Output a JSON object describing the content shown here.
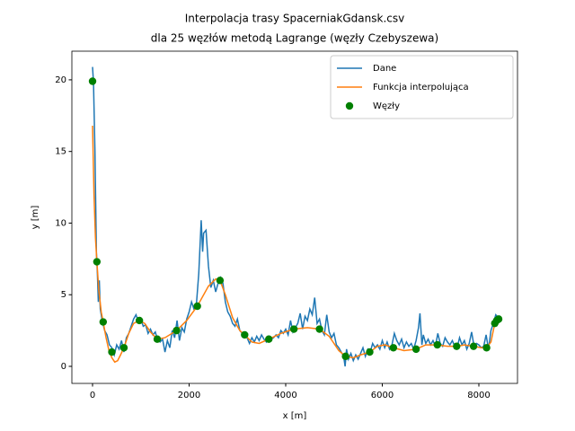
{
  "chart_data": {
    "type": "line",
    "title": [
      "Interpolacja trasy SpacerniakGdansk.csv",
      "dla 25 węzłów metodą  Lagrange (węzły Czebyszewa)"
    ],
    "xlabel": "x [m]",
    "ylabel": "y [m]",
    "xlim": [
      -428,
      8800
    ],
    "ylim": [
      -1.19,
      22.0
    ],
    "xticks": [
      0,
      2000,
      4000,
      6000,
      8000
    ],
    "yticks": [
      0,
      5,
      10,
      15,
      20
    ],
    "grid": false,
    "legend": "upper right",
    "series": [
      {
        "name": "Dane",
        "color": "#1f77b4",
        "kind": "line",
        "x": [
          0,
          20,
          50,
          80,
          100,
          120,
          140,
          160,
          200,
          250,
          300,
          350,
          400,
          450,
          500,
          550,
          600,
          650,
          700,
          750,
          800,
          850,
          900,
          950,
          1000,
          1050,
          1100,
          1150,
          1200,
          1250,
          1300,
          1350,
          1400,
          1450,
          1500,
          1550,
          1600,
          1650,
          1700,
          1750,
          1800,
          1850,
          1900,
          1950,
          2000,
          2050,
          2100,
          2150,
          2200,
          2250,
          2280,
          2300,
          2350,
          2400,
          2450,
          2500,
          2550,
          2600,
          2650,
          2700,
          2750,
          2800,
          2850,
          2900,
          2950,
          3000,
          3050,
          3100,
          3150,
          3200,
          3250,
          3300,
          3350,
          3400,
          3450,
          3500,
          3550,
          3600,
          3650,
          3700,
          3750,
          3800,
          3850,
          3900,
          3950,
          4000,
          4050,
          4100,
          4150,
          4200,
          4250,
          4300,
          4350,
          4400,
          4450,
          4500,
          4550,
          4600,
          4650,
          4700,
          4750,
          4800,
          4850,
          4900,
          4950,
          5000,
          5050,
          5100,
          5150,
          5200,
          5230,
          5260,
          5300,
          5350,
          5400,
          5450,
          5500,
          5550,
          5600,
          5650,
          5700,
          5750,
          5800,
          5850,
          5900,
          5950,
          6000,
          6050,
          6100,
          6150,
          6200,
          6250,
          6300,
          6350,
          6400,
          6450,
          6500,
          6550,
          6600,
          6650,
          6700,
          6750,
          6780,
          6820,
          6850,
          6900,
          6950,
          7000,
          7050,
          7100,
          7150,
          7200,
          7250,
          7300,
          7350,
          7400,
          7450,
          7500,
          7550,
          7600,
          7650,
          7700,
          7750,
          7800,
          7850,
          7900,
          7950,
          8000,
          8050,
          8100,
          8150,
          8200,
          8250,
          8300,
          8350,
          8400,
          8430
        ],
        "values": [
          20.9,
          19.8,
          15,
          8,
          6.5,
          4.5,
          6,
          4,
          3.2,
          2.5,
          2.2,
          1.5,
          1.3,
          0.8,
          1.5,
          1.2,
          1.8,
          1.0,
          2.0,
          2.3,
          2.8,
          3.3,
          3.6,
          3.1,
          3.3,
          2.8,
          2.9,
          2.3,
          2.6,
          2.2,
          2.4,
          1.8,
          1.7,
          1.9,
          1.0,
          1.8,
          1.3,
          2.5,
          2.0,
          3.2,
          1.8,
          2.7,
          2.4,
          3.3,
          3.8,
          4.5,
          4.0,
          4.3,
          6.5,
          10.2,
          8.0,
          9.3,
          9.5,
          7.0,
          5.5,
          6.0,
          5.2,
          5.8,
          6.2,
          5.8,
          4.5,
          3.8,
          3.5,
          3.0,
          2.8,
          3.3,
          2.5,
          2.3,
          2.1,
          2.0,
          1.6,
          2.0,
          1.7,
          2.1,
          1.8,
          2.2,
          1.9,
          1.7,
          2.1,
          1.9,
          2.0,
          2.2,
          2.0,
          2.5,
          2.3,
          2.6,
          2.2,
          3.2,
          2.4,
          2.7,
          3.0,
          3.7,
          2.6,
          3.5,
          3.2,
          4.0,
          3.6,
          4.8,
          3.0,
          3.3,
          2.5,
          2.2,
          3.6,
          2.4,
          2.0,
          2.3,
          1.5,
          1.3,
          1.0,
          0.7,
          0.0,
          1.2,
          0.5,
          0.9,
          0.4,
          0.8,
          0.5,
          0.9,
          1.3,
          0.7,
          1.2,
          1.0,
          1.6,
          1.3,
          1.5,
          1.2,
          1.8,
          1.3,
          1.7,
          1.2,
          1.5,
          2.3,
          1.8,
          1.5,
          1.9,
          1.3,
          1.7,
          1.4,
          1.6,
          1.2,
          1.8,
          2.7,
          3.7,
          1.5,
          2.2,
          1.6,
          1.9,
          1.5,
          1.8,
          1.4,
          2.3,
          1.6,
          1.4,
          2.0,
          1.7,
          1.5,
          1.8,
          1.4,
          1.3,
          2.0,
          1.5,
          1.8,
          1.2,
          1.6,
          2.4,
          1.4,
          1.6,
          1.5,
          1.3,
          1.4,
          2.2,
          1.2,
          2.5,
          3.0,
          3.6,
          3.4,
          3.2
        ]
      },
      {
        "name": "Funkcja interpolująca",
        "color": "#ff7f0e",
        "kind": "line",
        "x": [
          0,
          30,
          60,
          90,
          130,
          180,
          220,
          280,
          340,
          400,
          460,
          520,
          580,
          650,
          750,
          850,
          970,
          1080,
          1200,
          1340,
          1500,
          1740,
          1950,
          2170,
          2400,
          2550,
          2640,
          2750,
          2900,
          3050,
          3150,
          3300,
          3450,
          3650,
          3900,
          4170,
          4450,
          4700,
          4900,
          5100,
          5240,
          5400,
          5550,
          5740,
          5900,
          6050,
          6230,
          6450,
          6700,
          6900,
          7140,
          7350,
          7540,
          7700,
          7890,
          8050,
          8160,
          8250,
          8330,
          8410
        ],
        "values": [
          16.8,
          12,
          9,
          7.3,
          5.3,
          3.8,
          3.1,
          2.0,
          1.1,
          0.6,
          0.3,
          0.4,
          0.8,
          1.3,
          2.3,
          3.0,
          3.2,
          3.0,
          2.4,
          1.9,
          2.0,
          2.5,
          3.2,
          4.2,
          5.6,
          6.1,
          6.0,
          5.0,
          3.4,
          2.5,
          2.2,
          1.7,
          1.6,
          1.9,
          2.3,
          2.6,
          2.7,
          2.6,
          2.1,
          1.1,
          0.7,
          0.6,
          0.8,
          1.0,
          1.4,
          1.5,
          1.3,
          1.1,
          1.2,
          1.5,
          1.5,
          1.4,
          1.4,
          1.5,
          1.4,
          1.3,
          1.3,
          1.7,
          3.0,
          3.3
        ]
      },
      {
        "name": "Węzły",
        "color": "#008000",
        "kind": "scatter",
        "x": [
          0,
          90,
          220,
          400,
          650,
          970,
          1340,
          1740,
          2170,
          2640,
          3150,
          3650,
          4170,
          4700,
          5240,
          5740,
          6230,
          6700,
          7140,
          7540,
          7890,
          8160,
          8330,
          8370,
          8410
        ],
        "values": [
          19.9,
          7.3,
          3.1,
          1.0,
          1.3,
          3.2,
          1.9,
          2.5,
          4.2,
          6.0,
          2.2,
          1.9,
          2.6,
          2.6,
          0.7,
          1.0,
          1.3,
          1.2,
          1.5,
          1.4,
          1.4,
          1.3,
          3.0,
          3.2,
          3.3
        ]
      }
    ]
  }
}
